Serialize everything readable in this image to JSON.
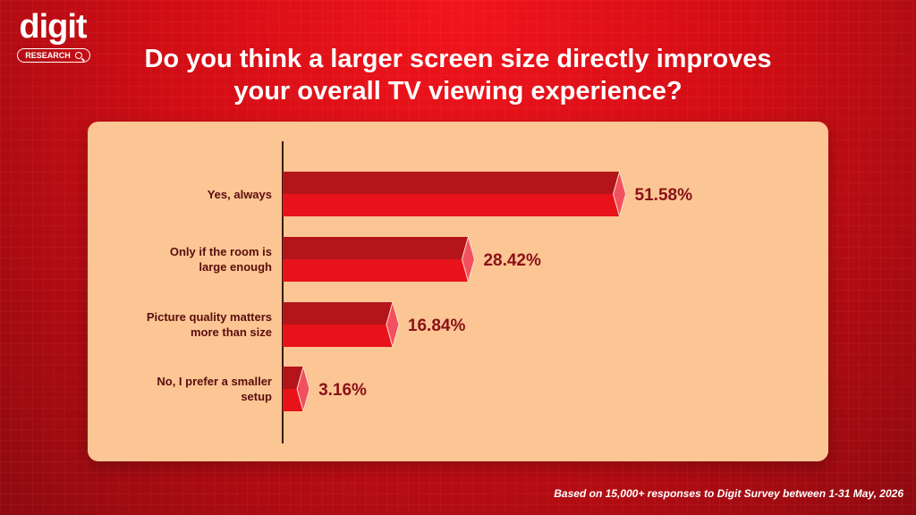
{
  "brand": {
    "logo_word": "digit",
    "badge_text": "RESEARCH"
  },
  "chart_data": {
    "type": "bar",
    "orientation": "horizontal",
    "title": "Do you think a larger screen size directly improves your overall TV viewing experience?",
    "categories": [
      [
        "Yes, always"
      ],
      [
        "Only if the room is",
        "large enough"
      ],
      [
        "Picture quality matters",
        "more than size"
      ],
      [
        "No, I prefer a smaller",
        "setup"
      ]
    ],
    "values": [
      51.58,
      28.42,
      16.84,
      3.16
    ],
    "value_labels": [
      "51.58%",
      "28.42%",
      "16.84%",
      "3.16%"
    ],
    "xlim": [
      0,
      100
    ],
    "grid": false,
    "legend": "none",
    "colors": {
      "bar_top": "#b3151b",
      "bar_bottom": "#e8121b",
      "cap": "#f25060",
      "value_text": "#8a1117",
      "axis": "#3a1a10"
    }
  },
  "footnote": "Based on 15,000+ responses to Digit Survey between 1-31 May, 2026"
}
